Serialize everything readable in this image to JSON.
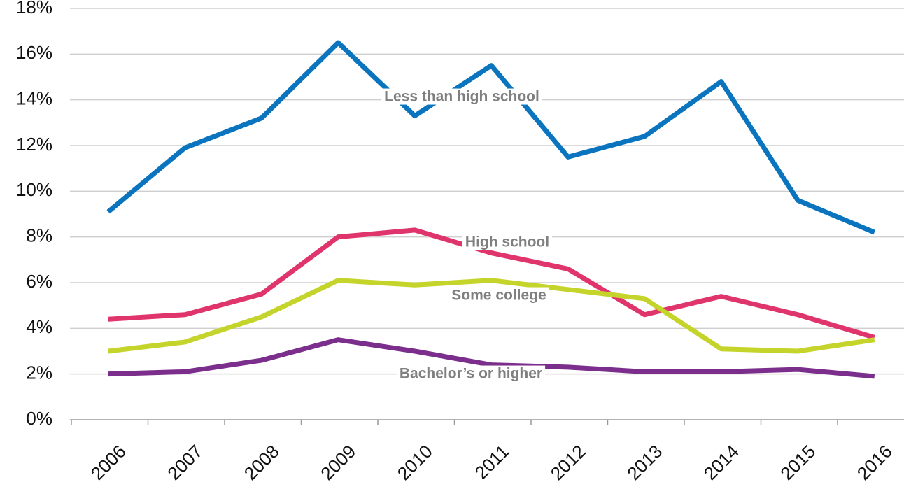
{
  "chart_data": {
    "type": "line",
    "categories": [
      "2006",
      "2007",
      "2008",
      "2009",
      "2010",
      "2011",
      "2012",
      "2013",
      "2014",
      "2015",
      "2016"
    ],
    "series": [
      {
        "name": "Less than high school",
        "color": "#0a75be",
        "values": [
          9.1,
          11.9,
          13.2,
          16.5,
          13.3,
          15.5,
          11.5,
          12.4,
          14.8,
          9.6,
          8.2
        ]
      },
      {
        "name": "High school",
        "color": "#e0356c",
        "values": [
          4.4,
          4.6,
          5.5,
          8.0,
          8.3,
          7.3,
          6.6,
          4.6,
          5.4,
          4.6,
          3.6
        ]
      },
      {
        "name": "Some college",
        "color": "#c5d42b",
        "values": [
          3.0,
          3.4,
          4.5,
          6.1,
          5.9,
          6.1,
          5.7,
          5.3,
          3.1,
          3.0,
          3.5
        ]
      },
      {
        "name": "Bachelor’s or higher",
        "color": "#7b2e8c",
        "values": [
          2.0,
          2.1,
          2.6,
          3.5,
          3.0,
          2.4,
          2.3,
          2.1,
          2.1,
          2.2,
          1.9
        ]
      }
    ],
    "ylim": [
      0,
      18
    ],
    "yticks": [
      {
        "value": 0,
        "label": "0%"
      },
      {
        "value": 2,
        "label": "2%"
      },
      {
        "value": 4,
        "label": "4%"
      },
      {
        "value": 6,
        "label": "6%"
      },
      {
        "value": 8,
        "label": "8%"
      },
      {
        "value": 10,
        "label": "10%"
      },
      {
        "value": 12,
        "label": "12%"
      },
      {
        "value": 14,
        "label": "14%"
      },
      {
        "value": 16,
        "label": "16%"
      },
      {
        "value": 18,
        "label": "18%"
      }
    ],
    "grid": true
  }
}
